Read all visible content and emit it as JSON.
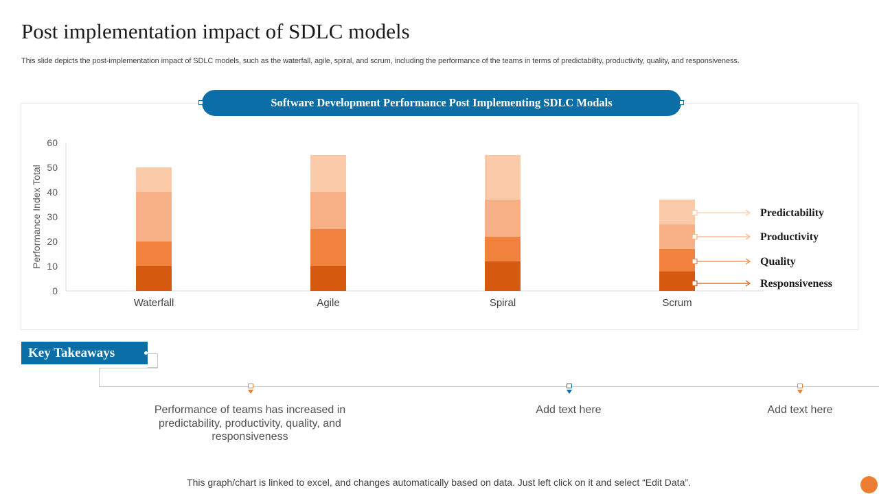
{
  "slide": {
    "title": "Post implementation impact of SDLC models",
    "subtitle": "This slide depicts the post-implementation impact of SDLC models, such as the waterfall, agile, spiral, and scrum, including the performance of the teams in terms of predictability, productivity, quality, and responsiveness.",
    "chart_heading": "Software Development Performance Post Implementing SDLC Modals",
    "key_takeaways_label": "Key Takeaways",
    "takeaways": [
      {
        "text": "Performance of teams has increased in predictability, productivity, quality, and responsiveness",
        "marker_color": "#ed7d31"
      },
      {
        "text": "Add text here",
        "marker_color": "#0c6ea6"
      },
      {
        "text": "Add text here",
        "marker_color": "#ed7d31"
      }
    ],
    "footer_note": "This graph/chart is linked to excel, and changes automatically based on data. Just left click on it and select “Edit Data”.",
    "colors": {
      "accent_blue": "#0c6ea6",
      "accent_orange": "#ed7d31"
    }
  },
  "chart_data": {
    "type": "bar",
    "stacked": true,
    "title": "Software Development Performance Post Implementing SDLC Modals",
    "xlabel": "",
    "ylabel": "Performance Index Total",
    "ylim": [
      0,
      60
    ],
    "yticks": [
      0,
      10,
      20,
      30,
      40,
      50,
      60
    ],
    "categories": [
      "Waterfall",
      "Agile",
      "Spiral",
      "Scrum"
    ],
    "series": [
      {
        "name": "Responsiveness",
        "values": [
          10,
          10,
          12,
          8
        ],
        "color": "#d55a0f"
      },
      {
        "name": "Quality",
        "values": [
          10,
          15,
          10,
          9
        ],
        "color": "#f0823d"
      },
      {
        "name": "Productivity",
        "values": [
          20,
          15,
          15,
          10
        ],
        "color": "#f8b187"
      },
      {
        "name": "Predictability",
        "values": [
          10,
          15,
          18,
          10
        ],
        "color": "#fbcaa9"
      }
    ],
    "legend_position": "right",
    "gridlines": false
  }
}
